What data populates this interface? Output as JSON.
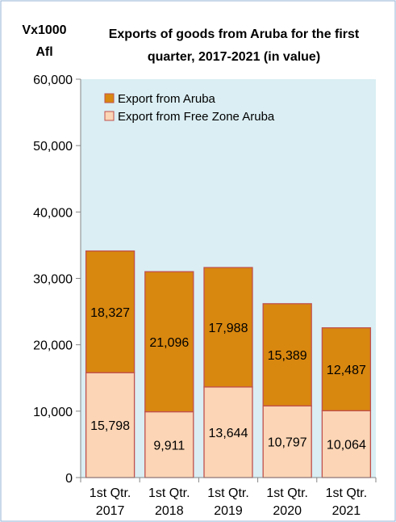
{
  "chart_data": {
    "type": "bar",
    "stacked": true,
    "title": "Exports of goods from Aruba for the first quarter, 2017-2021 (in value)",
    "title_lines": [
      "Exports of goods from Aruba for the first",
      "quarter, 2017-2021 (in value)"
    ],
    "ylabel_lines": [
      "Vx1000",
      "Afl"
    ],
    "xlabel": "",
    "ylim": [
      0,
      60000
    ],
    "y_ticks": [
      "0",
      "10,000",
      "20,000",
      "30,000",
      "40,000",
      "50,000",
      "60,000"
    ],
    "y_tick_values": [
      0,
      10000,
      20000,
      30000,
      40000,
      50000,
      60000
    ],
    "categories": [
      [
        "1st Qtr.",
        "2017"
      ],
      [
        "1st Qtr.",
        "2018"
      ],
      [
        "1st Qtr.",
        "2019"
      ],
      [
        "1st Qtr.",
        "2020"
      ],
      [
        "1st Qtr.",
        "2021"
      ]
    ],
    "series": [
      {
        "name": "Export from Free Zone Aruba",
        "values": [
          15798,
          9911,
          13644,
          10797,
          10064
        ],
        "labels": [
          "15,798",
          "9,911",
          "13,644",
          "10,797",
          "10,064"
        ]
      },
      {
        "name": "Export from Aruba",
        "values": [
          18327,
          21096,
          17988,
          15389,
          12487
        ],
        "labels": [
          "18,327",
          "21,096",
          "17,988",
          "15,389",
          "12,487"
        ]
      }
    ],
    "legend": [
      "Export from Aruba",
      "Export from Free Zone Aruba"
    ],
    "legend_placement": "top-left",
    "grid": false,
    "colors": {
      "export_from_aruba": "#D8870F",
      "export_from_free_zone": "#FBD5B5",
      "plot_background": "#DAEEF3",
      "bar_border": "#C0504D",
      "frame": "#95B3D7"
    }
  }
}
